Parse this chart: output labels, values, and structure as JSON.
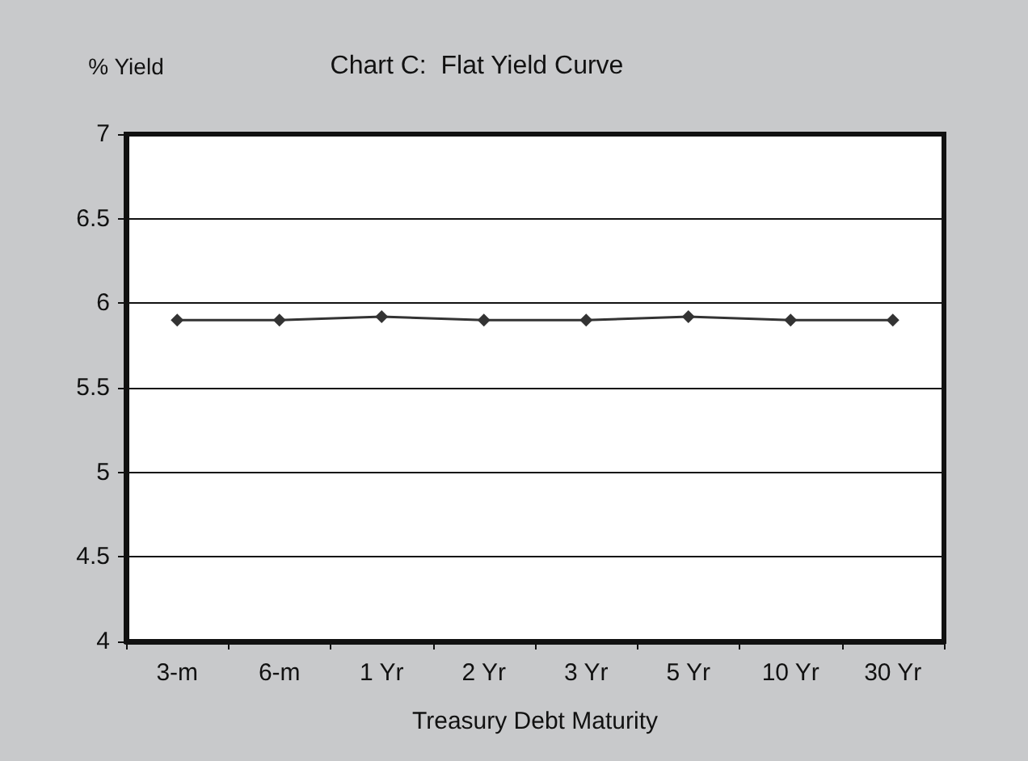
{
  "chart_data": {
    "type": "line",
    "title": "Chart C:  Flat Yield Curve",
    "xlabel": "Treasury Debt Maturity",
    "ylabel": "% Yield",
    "categories": [
      "3-m",
      "6-m",
      "1 Yr",
      "2 Yr",
      "3 Yr",
      "5 Yr",
      "10 Yr",
      "30 Yr"
    ],
    "series": [
      {
        "color": "#333333",
        "values": [
          5.9,
          5.9,
          5.92,
          5.9,
          5.9,
          5.92,
          5.9,
          5.9
        ]
      }
    ],
    "ylim": [
      4,
      7
    ],
    "yticks": [
      4,
      4.5,
      5,
      5.5,
      6,
      6.5,
      7
    ],
    "grid": "y",
    "marker": "diamond",
    "line_style": "solid"
  }
}
